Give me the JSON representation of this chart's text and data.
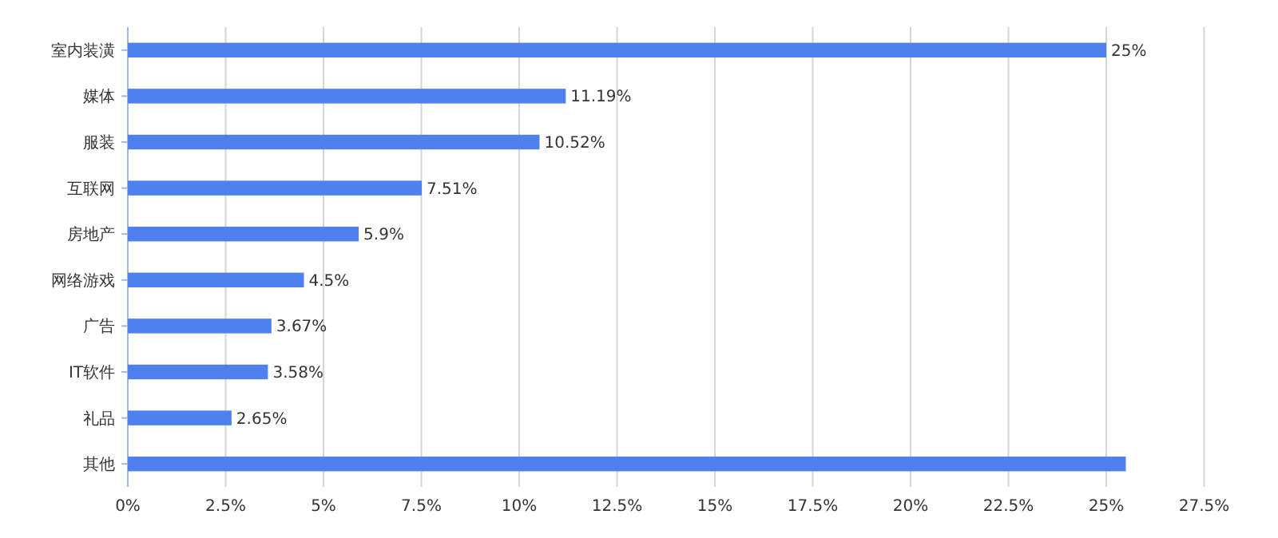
{
  "chart_data": {
    "type": "bar",
    "orientation": "horizontal",
    "categories": [
      "室内装潢",
      "媒体",
      "服装",
      "互联网",
      "房地产",
      "网络游戏",
      "广告",
      "IT软件",
      "礼品",
      "其他"
    ],
    "values": [
      25,
      11.19,
      10.52,
      7.51,
      5.9,
      4.5,
      3.67,
      3.58,
      2.65,
      25.5
    ],
    "value_labels": [
      "25%",
      "11.19%",
      "10.52%",
      "7.51%",
      "5.9%",
      "4.5%",
      "3.67%",
      "3.58%",
      "2.65%",
      null
    ],
    "color": "#4f81ee",
    "xlim": [
      0,
      27.5
    ],
    "xticks": [
      {
        "value": 0,
        "label": "0%"
      },
      {
        "value": 2.5,
        "label": "2.5%"
      },
      {
        "value": 5,
        "label": "5%"
      },
      {
        "value": 7.5,
        "label": "7.5%"
      },
      {
        "value": 10,
        "label": "10%"
      },
      {
        "value": 12.5,
        "label": "12.5%"
      },
      {
        "value": 15,
        "label": "15%"
      },
      {
        "value": 17.5,
        "label": "17.5%"
      },
      {
        "value": 20,
        "label": "20%"
      },
      {
        "value": 22.5,
        "label": "22.5%"
      },
      {
        "value": 25,
        "label": "25%"
      },
      {
        "value": 27.5,
        "label": "27.5%"
      }
    ],
    "grid": "x"
  }
}
